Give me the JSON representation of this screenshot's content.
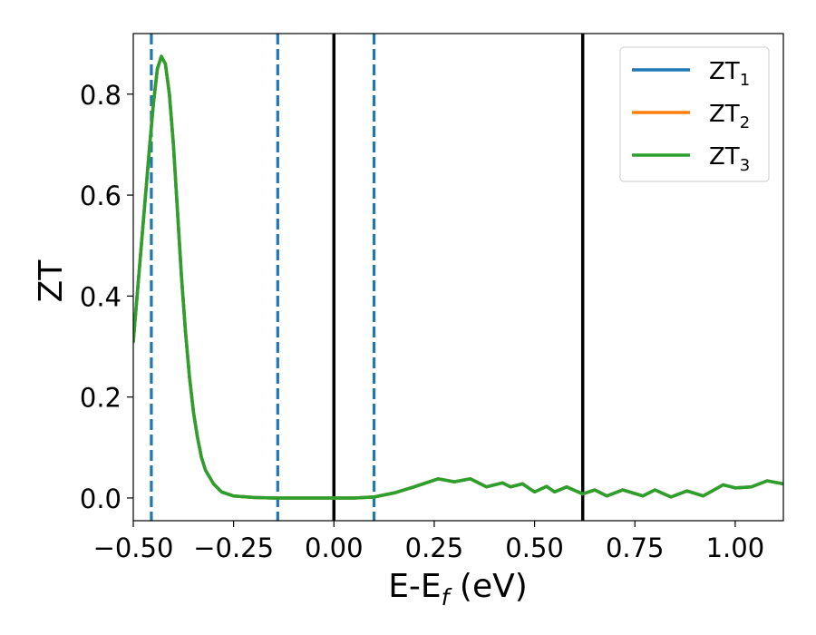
{
  "chart_data": {
    "type": "line",
    "xlabel_main": "E-E",
    "xlabel_sub": "f",
    "xlabel_unit": " (eV)",
    "ylabel": "ZT",
    "xlim": [
      -0.5,
      1.12
    ],
    "ylim": [
      -0.045,
      0.92
    ],
    "grid": false,
    "legend_placement": "top-right",
    "x_ticks": [
      -0.5,
      -0.25,
      0.0,
      0.25,
      0.5,
      0.75,
      1.0
    ],
    "x_tick_labels": [
      "−0.50",
      "−0.25",
      "0.00",
      "0.25",
      "0.50",
      "0.75",
      "1.00"
    ],
    "y_ticks": [
      0.0,
      0.2,
      0.4,
      0.6,
      0.8
    ],
    "y_tick_labels": [
      "0.0",
      "0.2",
      "0.4",
      "0.6",
      "0.8"
    ],
    "vertical_lines": [
      {
        "x": -0.455,
        "style": "dashed",
        "color": "#1f77b4"
      },
      {
        "x": -0.14,
        "style": "dashed",
        "color": "#1f77b4"
      },
      {
        "x": 0.0,
        "style": "solid",
        "color": "#000000"
      },
      {
        "x": 0.1,
        "style": "dashed",
        "color": "#1f77b4"
      },
      {
        "x": 0.62,
        "style": "solid",
        "color": "#000000"
      }
    ],
    "x": [
      -0.5,
      -0.48,
      -0.46,
      -0.45,
      -0.44,
      -0.43,
      -0.42,
      -0.41,
      -0.4,
      -0.39,
      -0.38,
      -0.37,
      -0.36,
      -0.35,
      -0.34,
      -0.33,
      -0.32,
      -0.3,
      -0.28,
      -0.25,
      -0.2,
      -0.15,
      -0.1,
      -0.05,
      0.0,
      0.05,
      0.1,
      0.15,
      0.2,
      0.26,
      0.3,
      0.34,
      0.38,
      0.42,
      0.44,
      0.47,
      0.5,
      0.53,
      0.55,
      0.58,
      0.62,
      0.65,
      0.68,
      0.72,
      0.77,
      0.8,
      0.84,
      0.88,
      0.92,
      0.97,
      1.0,
      1.04,
      1.08,
      1.12
    ],
    "series": [
      {
        "name": "ZT",
        "sub": "1",
        "color": "#1f77b4",
        "values": [
          0.31,
          0.5,
          0.69,
          0.78,
          0.85,
          0.875,
          0.86,
          0.8,
          0.7,
          0.57,
          0.44,
          0.33,
          0.24,
          0.17,
          0.12,
          0.08,
          0.055,
          0.028,
          0.012,
          0.004,
          0.001,
          0.0,
          0.0,
          0.0,
          0.0,
          0.0,
          0.002,
          0.01,
          0.022,
          0.038,
          0.032,
          0.038,
          0.022,
          0.03,
          0.022,
          0.028,
          0.012,
          0.023,
          0.012,
          0.022,
          0.008,
          0.016,
          0.004,
          0.016,
          0.004,
          0.016,
          0.002,
          0.014,
          0.004,
          0.026,
          0.02,
          0.022,
          0.034,
          0.028
        ]
      },
      {
        "name": "ZT",
        "sub": "2",
        "color": "#ff7f0e",
        "values": [
          0.31,
          0.5,
          0.69,
          0.78,
          0.85,
          0.875,
          0.86,
          0.8,
          0.7,
          0.57,
          0.44,
          0.33,
          0.24,
          0.17,
          0.12,
          0.08,
          0.055,
          0.028,
          0.012,
          0.004,
          0.001,
          0.0,
          0.0,
          0.0,
          0.0,
          0.0,
          0.002,
          0.01,
          0.022,
          0.038,
          0.032,
          0.038,
          0.022,
          0.03,
          0.022,
          0.028,
          0.012,
          0.023,
          0.012,
          0.022,
          0.008,
          0.016,
          0.004,
          0.016,
          0.004,
          0.016,
          0.002,
          0.014,
          0.004,
          0.026,
          0.02,
          0.022,
          0.034,
          0.028
        ]
      },
      {
        "name": "ZT",
        "sub": "3",
        "color": "#2ca02c",
        "values": [
          0.31,
          0.5,
          0.69,
          0.78,
          0.85,
          0.875,
          0.86,
          0.8,
          0.7,
          0.57,
          0.44,
          0.33,
          0.24,
          0.17,
          0.12,
          0.08,
          0.055,
          0.028,
          0.012,
          0.004,
          0.001,
          0.0,
          0.0,
          0.0,
          0.0,
          0.0,
          0.002,
          0.01,
          0.022,
          0.038,
          0.032,
          0.038,
          0.022,
          0.03,
          0.022,
          0.028,
          0.012,
          0.023,
          0.012,
          0.022,
          0.008,
          0.016,
          0.004,
          0.016,
          0.004,
          0.016,
          0.002,
          0.014,
          0.004,
          0.026,
          0.02,
          0.022,
          0.034,
          0.028
        ]
      }
    ]
  }
}
